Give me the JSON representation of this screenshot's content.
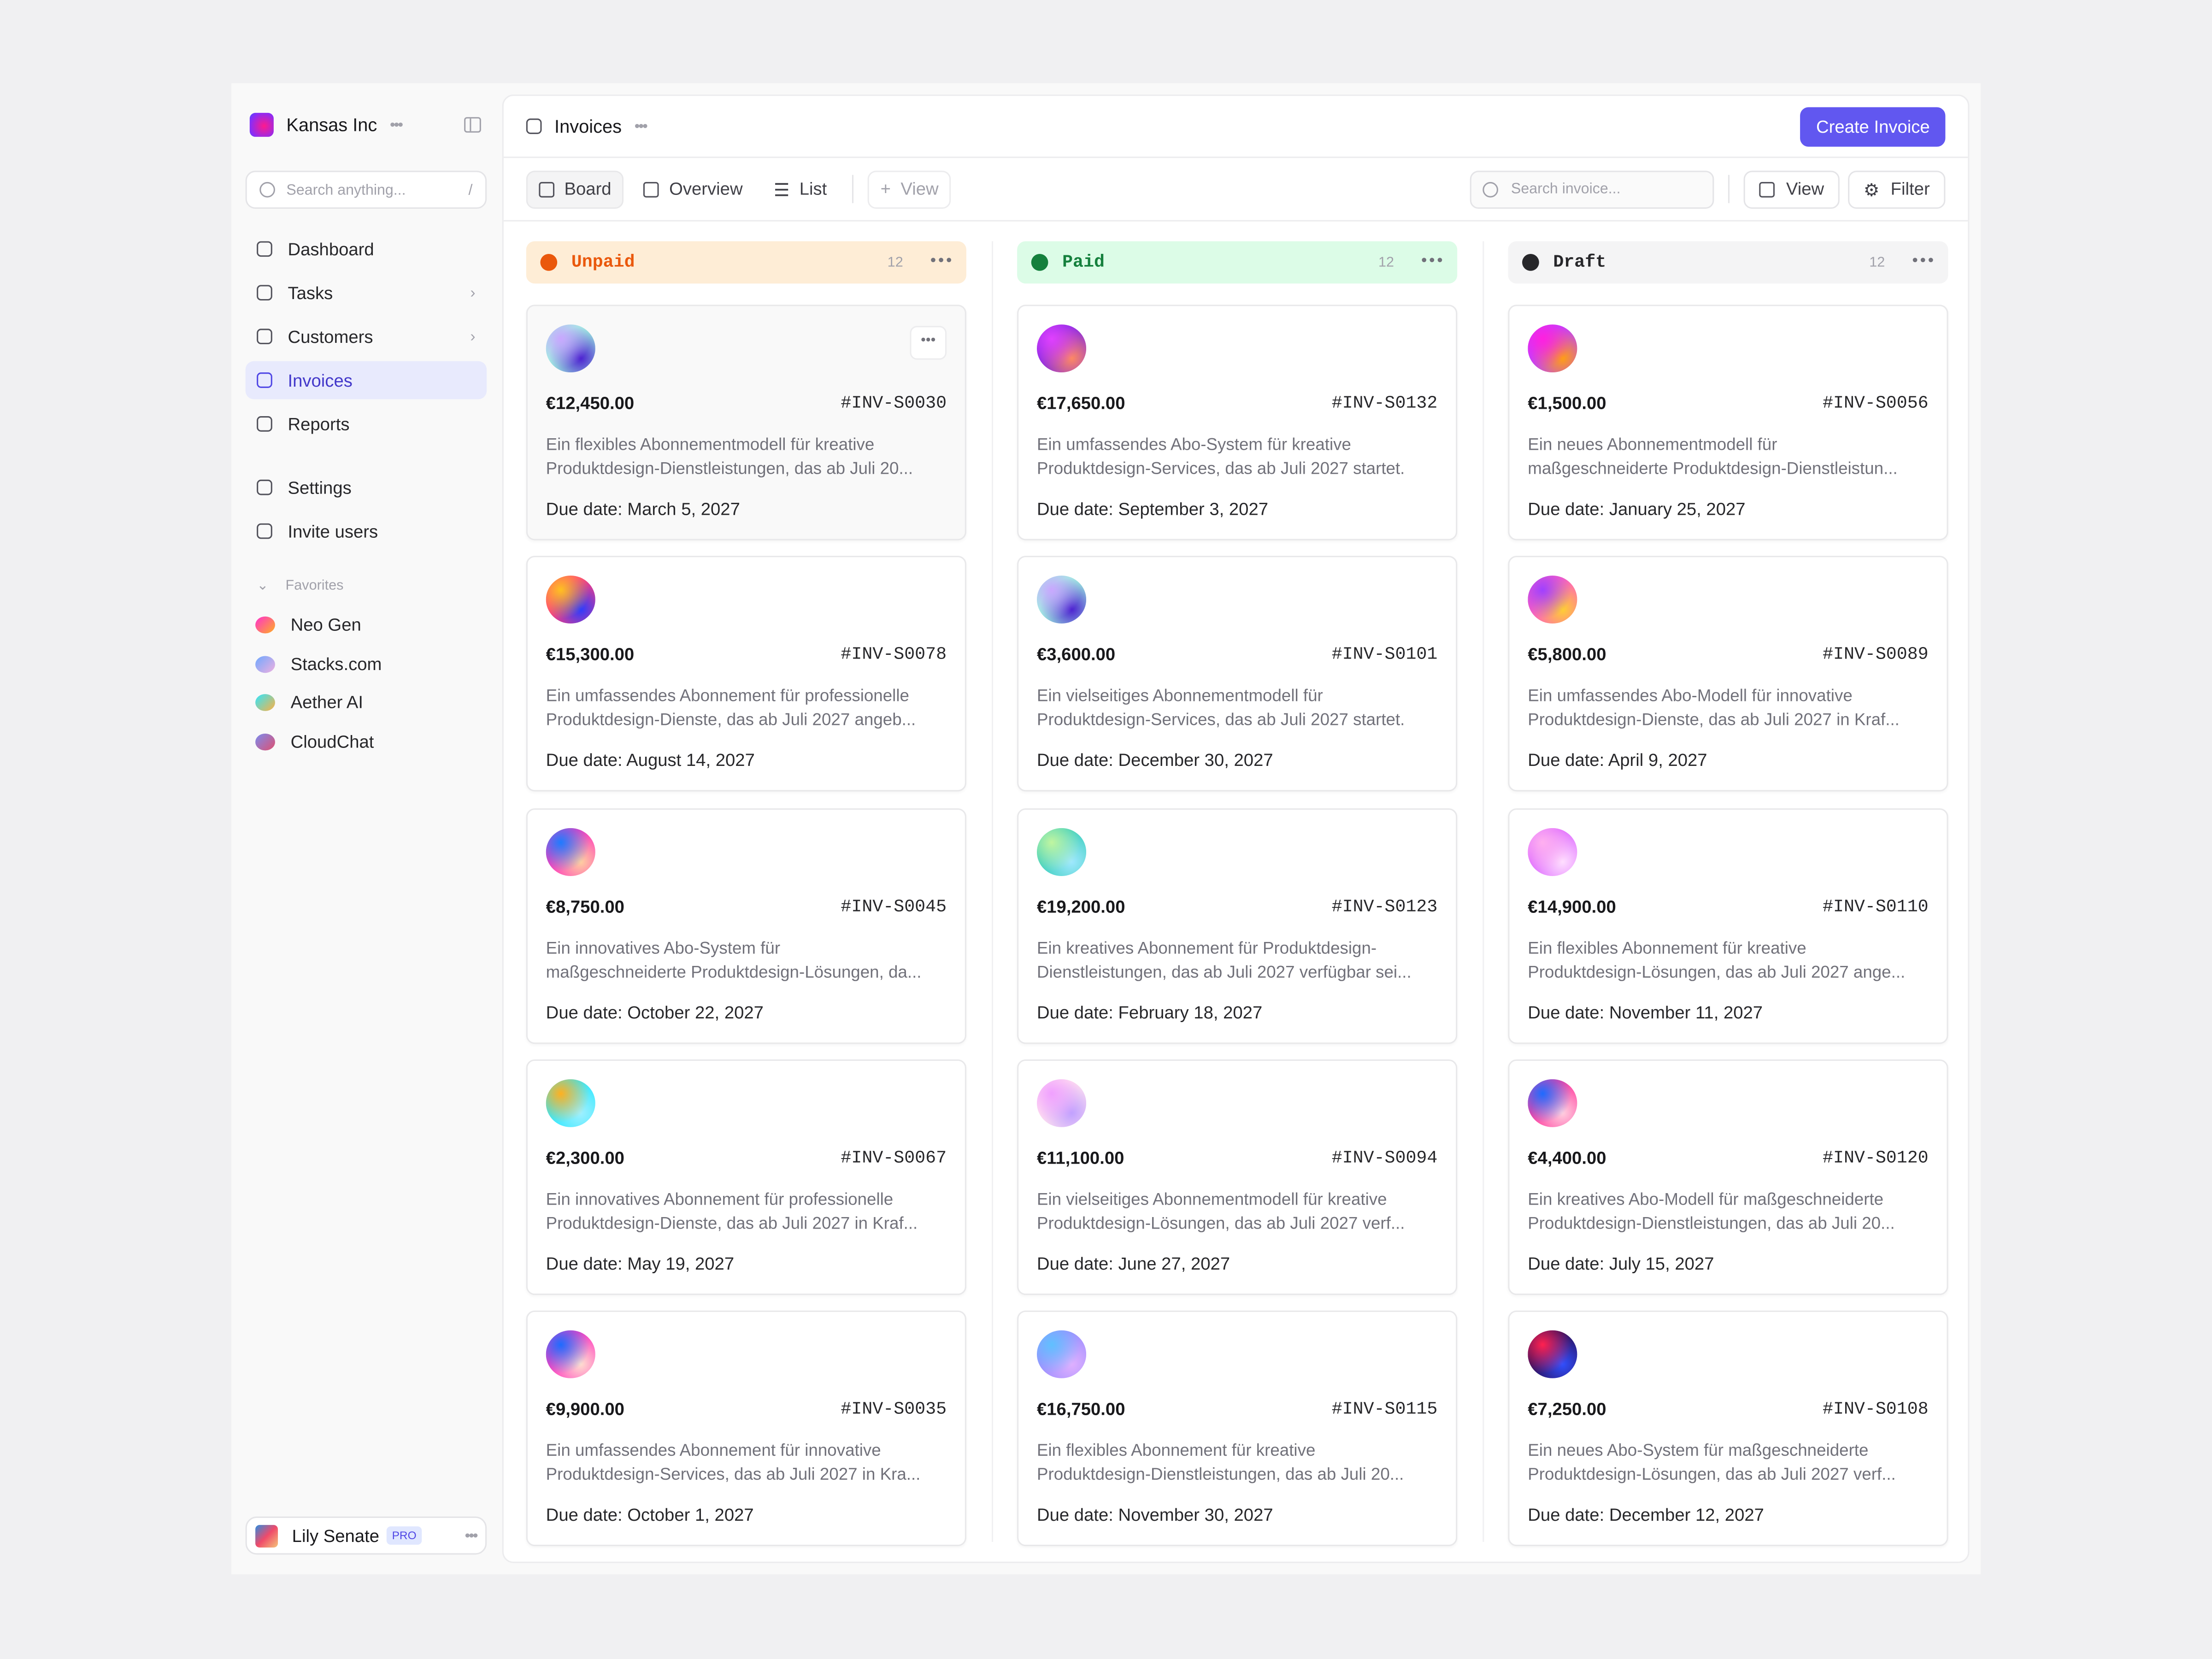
{
  "workspace": {
    "name": "Kansas Inc",
    "logo_gradient": [
      "#ff1a8c",
      "#8b2cf5"
    ]
  },
  "sidebar": {
    "search_placeholder": "Search anything...",
    "search_shortcut": "/",
    "items": [
      {
        "label": "Dashboard",
        "icon": "home-icon"
      },
      {
        "label": "Tasks",
        "icon": "clipboard-check-icon",
        "chevron": true
      },
      {
        "label": "Customers",
        "icon": "user-circle-icon",
        "chevron": true
      },
      {
        "label": "Invoices",
        "icon": "receipt-icon",
        "active": true
      },
      {
        "label": "Reports",
        "icon": "report-icon"
      },
      {
        "label": "Settings",
        "icon": "sliders-icon"
      },
      {
        "label": "Invite users",
        "icon": "user-plus-icon"
      }
    ],
    "favorites_label": "Favorites",
    "favorites": [
      {
        "label": "Neo Gen",
        "colors": [
          "#ff2fd0",
          "#ffb020"
        ]
      },
      {
        "label": "Stacks.com",
        "colors": [
          "#6ea8ff",
          "#f0b0e0"
        ]
      },
      {
        "label": "Aether AI",
        "colors": [
          "#2ee6ff",
          "#ffb040"
        ]
      },
      {
        "label": "CloudChat",
        "colors": [
          "#7a8cf0",
          "#e05070"
        ]
      }
    ],
    "user": {
      "name": "Lily Senate",
      "badge": "PRO"
    }
  },
  "header": {
    "title": "Invoices",
    "create_label": "Create Invoice",
    "accent": "#6157f0"
  },
  "toolbar": {
    "tabs": [
      "Board",
      "Overview",
      "List"
    ],
    "add_view": "View",
    "search_placeholder": "Search invoice...",
    "view_label": "View",
    "filter_label": "Filter"
  },
  "columns": [
    {
      "title": "Unpaid",
      "count": "12",
      "bg": "#feedd6",
      "color": "#ea580c",
      "cards": [
        {
          "amount": "€12,450.00",
          "id": "#INV-S0030",
          "desc": [
            "Ein flexibles Abonnementmodell für kreative",
            "Produktdesign-Dienstleistungen, das ab Juli 20..."
          ],
          "due": "Due date: March 5, 2027",
          "colors": [
            "#c9a7ff",
            "#9ff5e0",
            "#4b1fd0"
          ]
        },
        {
          "amount": "€15,300.00",
          "id": "#INV-S0078",
          "desc": [
            "Ein umfassendes Abonnement für professionelle",
            "Produktdesign-Dienste, das ab Juli 2027 angeb..."
          ],
          "due": "Due date: August 14, 2027",
          "colors": [
            "#ffc020",
            "#ff3d7f",
            "#2b3bff"
          ]
        },
        {
          "amount": "€8,750.00",
          "id": "#INV-S0045",
          "desc": [
            "Ein innovatives Abo-System für",
            "maßgeschneiderte Produktdesign-Lösungen, da..."
          ],
          "due": "Due date: October 22, 2027",
          "colors": [
            "#1e7bff",
            "#ff3dbb",
            "#ffd0a0"
          ]
        },
        {
          "amount": "€2,300.00",
          "id": "#INV-S0067",
          "desc": [
            "Ein innovatives Abonnement für professionelle",
            "Produktdesign-Dienste, das ab Juli 2027 in Kraf..."
          ],
          "due": "Due date: May 19, 2027",
          "colors": [
            "#ffb020",
            "#30e8ff",
            "#a0f0ff"
          ]
        },
        {
          "amount": "€9,900.00",
          "id": "#INV-S0035",
          "desc": [
            "Ein umfassendes Abonnement für innovative",
            "Produktdesign-Services, das ab Juli 2027 in Kra..."
          ],
          "due": "Due date: October 1, 2027",
          "colors": [
            "#1e6bff",
            "#ff40c0",
            "#ffe0d0"
          ]
        }
      ]
    },
    {
      "title": "Paid",
      "count": "12",
      "bg": "#dcfce7",
      "color": "#15803d",
      "cards": [
        {
          "amount": "€17,650.00",
          "id": "#INV-S0132",
          "desc": [
            "Ein umfassendes Abo-System für kreative",
            "Produktdesign-Services, das ab Juli 2027 startet."
          ],
          "due": "Due date: September 3, 2027",
          "colors": [
            "#e040ff",
            "#8a2be2",
            "#ff8a60"
          ]
        },
        {
          "amount": "€3,600.00",
          "id": "#INV-S0101",
          "desc": [
            "Ein vielseitiges Abonnementmodell für",
            "Produktdesign-Services, das ab Juli 2027 startet."
          ],
          "due": "Due date: December 30, 2027",
          "colors": [
            "#c9a7ff",
            "#9ff5e0",
            "#4b1fd0"
          ]
        },
        {
          "amount": "€19,200.00",
          "id": "#INV-S0123",
          "desc": [
            "Ein kreatives Abonnement für Produktdesign-",
            "Dienstleistungen, das ab Juli 2027 verfügbar sei..."
          ],
          "due": "Due date: February 18, 2027",
          "colors": [
            "#c0f5a0",
            "#40d0c0",
            "#a0e8ff"
          ]
        },
        {
          "amount": "€11,100.00",
          "id": "#INV-S0094",
          "desc": [
            "Ein vielseitiges Abonnementmodell für kreative",
            "Produktdesign-Lösungen, das ab Juli 2027 verf..."
          ],
          "due": "Due date: June 27, 2027",
          "colors": [
            "#f0a0ff",
            "#ffe0f0",
            "#c0a0ff"
          ]
        },
        {
          "amount": "€16,750.00",
          "id": "#INV-S0115",
          "desc": [
            "Ein flexibles Abonnement für kreative",
            "Produktdesign-Dienstleistungen, das ab Juli 20..."
          ],
          "due": "Due date: November 30, 2027",
          "colors": [
            "#60c0ff",
            "#a090ff",
            "#e0b0ff"
          ]
        }
      ]
    },
    {
      "title": "Draft",
      "count": "12",
      "bg": "#f4f4f5",
      "color": "#27272a",
      "cards": [
        {
          "amount": "€1,500.00",
          "id": "#INV-S0056",
          "desc": [
            "Ein neues Abonnementmodell für",
            "maßgeschneiderte Produktdesign-Dienstleistun..."
          ],
          "due": "Due date: January 25, 2027",
          "colors": [
            "#ff20e0",
            "#c040ff",
            "#ffa010"
          ]
        },
        {
          "amount": "€5,800.00",
          "id": "#INV-S0089",
          "desc": [
            "Ein umfassendes Abo-Modell für innovative",
            "Produktdesign-Dienste, das ab Juli 2027 in Kraf..."
          ],
          "due": "Due date: April 9, 2027",
          "colors": [
            "#a040ff",
            "#ff60c0",
            "#ffd030"
          ]
        },
        {
          "amount": "€14,900.00",
          "id": "#INV-S0110",
          "desc": [
            "Ein flexibles Abonnement für kreative",
            "Produktdesign-Lösungen, das ab Juli 2027 ange..."
          ],
          "due": "Due date: November 11, 2027",
          "colors": [
            "#ffb0f0",
            "#e070ff",
            "#ffe0ff"
          ]
        },
        {
          "amount": "€4,400.00",
          "id": "#INV-S0120",
          "desc": [
            "Ein kreatives Abo-Modell für maßgeschneiderte",
            "Produktdesign-Dienstleistungen, das ab Juli 20..."
          ],
          "due": "Due date: July 15, 2027",
          "colors": [
            "#1e6bff",
            "#ff40a0",
            "#ffd0e0"
          ]
        },
        {
          "amount": "€7,250.00",
          "id": "#INV-S0108",
          "desc": [
            "Ein neues Abo-System für maßgeschneiderte",
            "Produktdesign-Lösungen, das ab Juli 2027 verf..."
          ],
          "due": "Due date: December 12, 2027",
          "colors": [
            "#ff2050",
            "#2a1060",
            "#3050ff"
          ]
        }
      ]
    }
  ]
}
